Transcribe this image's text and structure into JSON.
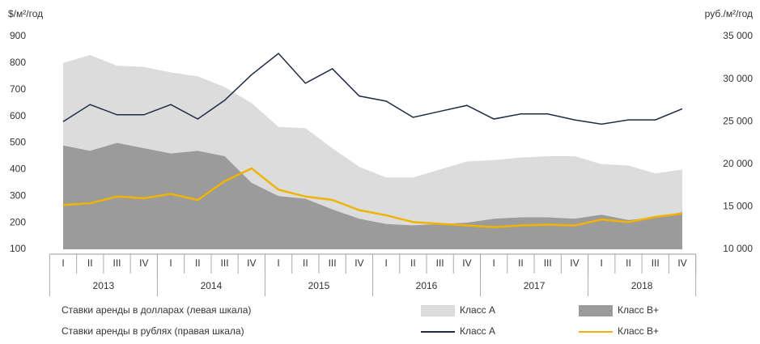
{
  "chart_data": {
    "type": "area_line",
    "y_label": "$/м²/год",
    "y2_label": "руб./м²/год",
    "categories": [
      "I",
      "II",
      "III",
      "IV",
      "I",
      "II",
      "III",
      "IV",
      "I",
      "II",
      "III",
      "IV",
      "I",
      "II",
      "III",
      "IV",
      "I",
      "II",
      "III",
      "IV",
      "I",
      "II",
      "III",
      "IV"
    ],
    "years": [
      "2013",
      "2014",
      "2015",
      "2016",
      "2017",
      "2018"
    ],
    "legend_groups": [
      "Ставки аренды в долларах (левая шкала)",
      "Ставки аренды в рублях (правая шкала)"
    ],
    "ylim": [
      100,
      900
    ],
    "yticks": [
      100,
      200,
      300,
      400,
      500,
      600,
      700,
      800,
      900
    ],
    "y2lim": [
      10000,
      35000
    ],
    "y2ticks": [
      {
        "value": 10000,
        "label": "10 000"
      },
      {
        "value": 15000,
        "label": "15 000"
      },
      {
        "value": 20000,
        "label": "20 000"
      },
      {
        "value": 25000,
        "label": "25 000"
      },
      {
        "value": 30000,
        "label": "30 000"
      },
      {
        "value": 35000,
        "label": "35 000"
      }
    ],
    "series": [
      {
        "name": "Класс А",
        "kind": "area",
        "color": "#dcdcdc",
        "values": [
          800,
          830,
          790,
          785,
          765,
          750,
          710,
          650,
          560,
          555,
          480,
          410,
          370,
          370,
          400,
          430,
          435,
          445,
          450,
          450,
          420,
          415,
          385,
          400
        ]
      },
      {
        "name": "Класс В+",
        "kind": "area",
        "color": "#9b9b9b",
        "values": [
          490,
          470,
          500,
          480,
          460,
          470,
          450,
          350,
          300,
          290,
          250,
          215,
          195,
          190,
          195,
          200,
          215,
          220,
          220,
          215,
          230,
          210,
          220,
          240
        ]
      },
      {
        "name": "Класс А",
        "kind": "line",
        "axis": "y2",
        "color": "#1f2a44",
        "values": [
          25000,
          27000,
          25800,
          25800,
          27000,
          25300,
          27500,
          30500,
          33000,
          29500,
          31200,
          28000,
          27400,
          25500,
          26200,
          26900,
          25300,
          25900,
          25900,
          25200,
          24700,
          25200,
          25200,
          26500
        ]
      },
      {
        "name": "Класс В+",
        "kind": "line",
        "axis": "y2",
        "color": "#f0b400",
        "values": [
          15200,
          15400,
          16200,
          16000,
          16500,
          15800,
          18000,
          19500,
          17000,
          16200,
          15800,
          14600,
          14000,
          13200,
          13000,
          12800,
          12600,
          12800,
          12900,
          12800,
          13500,
          13200,
          13800,
          14200
        ]
      }
    ]
  }
}
